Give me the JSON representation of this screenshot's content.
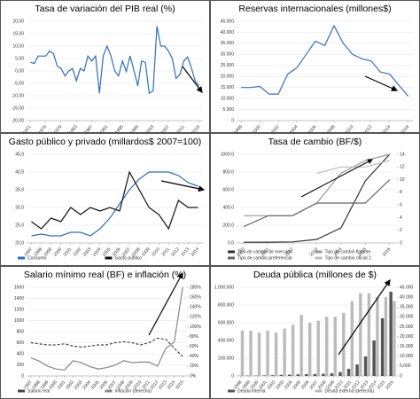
{
  "chart_data": [
    {
      "type": "line",
      "title": "Tasa de variación del PIB real (%)",
      "x": [
        1971,
        1972,
        1973,
        1974,
        1975,
        1976,
        1977,
        1978,
        1979,
        1980,
        1981,
        1982,
        1983,
        1984,
        1985,
        1986,
        1987,
        1988,
        1989,
        1990,
        1991,
        1992,
        1993,
        1994,
        1995,
        1996,
        1997,
        1998,
        1999,
        2000,
        2001,
        2002,
        2003,
        2004,
        2005,
        2006,
        2007,
        2008,
        2009,
        2010,
        2011,
        2012,
        2013,
        2014,
        2015
      ],
      "series": [
        {
          "name": "PIB real",
          "color": "#2e6fbf",
          "values": [
            3.5,
            3,
            6,
            6,
            6,
            8,
            7,
            2,
            1,
            -2,
            0,
            1,
            -4,
            1,
            0,
            6,
            4,
            6,
            -9,
            6,
            10,
            6,
            0,
            -2,
            4,
            -0.2,
            6,
            0.3,
            -6,
            4,
            3.4,
            -9,
            -8,
            18,
            10,
            10,
            8,
            5,
            -3,
            -1.5,
            4,
            5.6,
            1.3,
            -4,
            -6
          ]
        }
      ],
      "xlim": [
        1970,
        2016
      ],
      "xticks": [
        1971,
        1975,
        1979,
        1983,
        1987,
        1991,
        1995,
        1999,
        2003,
        2007,
        2011,
        2015
      ],
      "ylim": [
        -20,
        20
      ],
      "yticks": [
        {
          "value": -20,
          "label": "-20,00"
        },
        {
          "value": -15,
          "label": "-15,00"
        },
        {
          "value": -10,
          "label": "-10,00"
        },
        {
          "value": -5,
          "label": "-5,00"
        },
        {
          "value": 0,
          "label": "0,00"
        },
        {
          "value": 5,
          "label": "5,00"
        },
        {
          "value": 10,
          "label": "10,00"
        },
        {
          "value": 15,
          "label": "15,00"
        },
        {
          "value": 20,
          "label": "20,00"
        }
      ],
      "grid": true
    },
    {
      "type": "line",
      "title": "Reservas internacionales (millones$)",
      "x": [
        1998,
        1999,
        2000,
        2001,
        2002,
        2003,
        2004,
        2005,
        2006,
        2007,
        2008,
        2009,
        2010,
        2011,
        2012,
        2013,
        2014,
        2015,
        2016
      ],
      "series": [
        {
          "name": "Reservas",
          "color": "#3a6fc2",
          "values": [
            15000,
            15000,
            15500,
            12000,
            12000,
            21000,
            24000,
            30000,
            36000,
            34000,
            43000,
            35000,
            30000,
            28000,
            27000,
            22000,
            21000,
            16000,
            11000
          ]
        }
      ],
      "xlim": [
        1997.5,
        2016.5
      ],
      "xticks": [
        1998,
        2000,
        2002,
        2004,
        2006,
        2008,
        2010,
        2012,
        2014,
        2016
      ],
      "ylim": [
        0,
        45000
      ],
      "yticks": [
        0,
        {
          "value": 5000,
          "label": "5.000"
        },
        {
          "value": 10000,
          "label": "10.000"
        },
        {
          "value": 15000,
          "label": "15.000"
        },
        {
          "value": 20000,
          "label": "20.000"
        },
        {
          "value": 25000,
          "label": "25.000"
        },
        {
          "value": 30000,
          "label": "30.000"
        },
        {
          "value": 35000,
          "label": "35.000"
        },
        {
          "value": 40000,
          "label": "40.000"
        },
        {
          "value": 45000,
          "label": "45.000"
        }
      ],
      "grid": true
    },
    {
      "type": "line",
      "title": "Gasto público y privado (millardos$ 2007=100)",
      "x": [
        1997,
        1998,
        1999,
        2000,
        2001,
        2002,
        2003,
        2004,
        2005,
        2006,
        2007,
        2008,
        2009,
        2010,
        2011,
        2012,
        2013,
        2014
      ],
      "series": [
        {
          "name": "Consumo",
          "color": "#2e6fbf",
          "values": [
            22,
            22.5,
            22,
            22,
            23,
            23,
            22,
            24,
            27,
            31,
            35,
            38,
            40,
            40,
            40,
            39,
            37,
            36
          ]
        },
        {
          "name": "Gasto público",
          "color": "#111111",
          "values": [
            26,
            24,
            27,
            26,
            30,
            28,
            30,
            29,
            30,
            29,
            40,
            35,
            30,
            28,
            24,
            32,
            30,
            30
          ]
        }
      ],
      "xlim": [
        1996.5,
        2014.5
      ],
      "xticks": [
        1997,
        1998,
        1999,
        2000,
        2001,
        2002,
        2003,
        2004,
        2005,
        2006,
        2007,
        2008,
        2009,
        2010,
        2011,
        2012,
        2013,
        2014
      ],
      "ylim": [
        20,
        45
      ],
      "yticks": [
        {
          "value": 20,
          "label": "20,0"
        },
        {
          "value": 25,
          "label": "25,0"
        },
        {
          "value": 30,
          "label": "30,0"
        },
        {
          "value": 35,
          "label": "35,0"
        },
        {
          "value": 40,
          "label": "40,0"
        },
        {
          "value": 45,
          "label": "45,0"
        }
      ],
      "grid": true,
      "legend": true
    },
    {
      "type": "line",
      "title": "Tasa de cambio (BF/$)",
      "x": [
        2010,
        2011,
        2012,
        2013,
        2014,
        2015,
        2016
      ],
      "series": [
        {
          "name": "Tipo de cambio de mercado",
          "color": "#333333",
          "values": [
            8,
            9,
            12,
            40,
            170,
            700,
            1000
          ]
        },
        {
          "name": "Tipo de cambio flotante",
          "color": "#999999",
          "axis": "y2",
          "values": [
            4.3,
            4.3,
            4.3,
            6.3,
            11,
            13,
            14
          ]
        },
        {
          "name": "Tipo de cambio preferencial",
          "color": "#666666",
          "axis": "y2",
          "values": [
            2.6,
            4.3,
            4.3,
            6.3,
            6.3,
            6.3,
            10
          ]
        },
        {
          "name": "Tipo de cambio oficial 2",
          "color": "#bbbbbb",
          "axis": "y2",
          "values": [
            null,
            null,
            null,
            11,
            12,
            12,
            13
          ]
        }
      ],
      "xlim": [
        2009.7,
        2016.3
      ],
      "xticks": [
        2010,
        2011,
        2012,
        2013,
        2014,
        2015,
        2016
      ],
      "ylim": [
        0,
        1000
      ],
      "yticks": [
        {
          "value": 0,
          "label": "0.0"
        },
        {
          "value": 200,
          "label": "200.0"
        },
        {
          "value": 400,
          "label": "400.0"
        },
        {
          "value": 600,
          "label": "600.0"
        },
        {
          "value": 800,
          "label": "800.0"
        },
        {
          "value": 1000,
          "label": "1000.0"
        }
      ],
      "y2lim": [
        0,
        14
      ],
      "y2ticks": [
        0,
        2,
        4,
        6,
        8,
        10,
        12,
        14
      ],
      "grid": true,
      "legend": true
    },
    {
      "type": "line",
      "title": "Salario mínimo real (BF) e inflación (%)",
      "x": [
        1997,
        1998,
        1999,
        2000,
        2001,
        2002,
        2003,
        2004,
        2005,
        2006,
        2007,
        2008,
        2009,
        2010,
        2011,
        2012,
        2013,
        2014,
        2015
      ],
      "series": [
        {
          "name": "Salario real",
          "color": "#444444",
          "dash": true,
          "values": [
            600,
            580,
            560,
            560,
            580,
            540,
            520,
            540,
            560,
            560,
            600,
            620,
            600,
            560,
            600,
            680,
            660,
            500,
            350
          ]
        },
        {
          "name": "Inflación (derecha)",
          "color": "#888888",
          "axis": "y2",
          "values": [
            37,
            30,
            20,
            14,
            12,
            31,
            27,
            19,
            14,
            17,
            22,
            31,
            27,
            28,
            28,
            20,
            56,
            69,
            180
          ]
        }
      ],
      "xlim": [
        1996.5,
        2015.5
      ],
      "xticks": [
        1997,
        1998,
        1999,
        2000,
        2001,
        2002,
        2003,
        2004,
        2005,
        2006,
        2007,
        2008,
        2009,
        2010,
        2011,
        2012,
        2013,
        2014,
        2015
      ],
      "ylim": [
        0,
        1600
      ],
      "yticks": [
        0,
        200,
        400,
        600,
        800,
        1000,
        1200,
        1400,
        1600
      ],
      "y2lim": [
        0,
        180
      ],
      "y2ticks": [
        {
          "value": 0,
          "label": "0%"
        },
        {
          "value": 20,
          "label": "20%"
        },
        {
          "value": 40,
          "label": "40%"
        },
        {
          "value": 60,
          "label": "60%"
        },
        {
          "value": 80,
          "label": "80%"
        },
        {
          "value": 100,
          "label": "100%"
        },
        {
          "value": 120,
          "label": "120%"
        },
        {
          "value": 140,
          "label": "140%"
        },
        {
          "value": 160,
          "label": "160%"
        },
        {
          "value": 180,
          "label": "180%"
        }
      ],
      "grid": true,
      "legend": true
    },
    {
      "type": "bar",
      "title": "Deuda pública (millones de $)",
      "x": [
        1998,
        1999,
        2000,
        2001,
        2002,
        2003,
        2004,
        2005,
        2006,
        2007,
        2008,
        2009,
        2010,
        2011,
        2012,
        2013,
        2014,
        2015,
        2016
      ],
      "series": [
        {
          "name": "Deuda interna",
          "color": "#555555",
          "values": [
            2000,
            3000,
            4000,
            6000,
            8000,
            12000,
            15000,
            18000,
            20000,
            22000,
            25000,
            30000,
            45000,
            80000,
            130000,
            220000,
            400000,
            650000,
            950000
          ]
        },
        {
          "name": "Deuda externa (derecha)",
          "color": "#bbbbbb",
          "axis": "y2",
          "values": [
            23000,
            23000,
            22000,
            23000,
            22000,
            24000,
            26000,
            31000,
            27000,
            28000,
            30000,
            30000,
            32000,
            38000,
            42000,
            42000,
            40000,
            40000,
            38000
          ]
        }
      ],
      "xlim": [
        1997.5,
        2016.5
      ],
      "xticks": [
        1998,
        1999,
        2000,
        2001,
        2002,
        2003,
        2004,
        2005,
        2006,
        2007,
        2008,
        2009,
        2010,
        2011,
        2012,
        2013,
        2014,
        2015,
        2016
      ],
      "ylim": [
        0,
        1000000
      ],
      "yticks": [
        0,
        {
          "value": 200000,
          "label": "200.000"
        },
        {
          "value": 400000,
          "label": "400.000"
        },
        {
          "value": 600000,
          "label": "600.000"
        },
        {
          "value": 800000,
          "label": "800.000"
        },
        {
          "value": 1000000,
          "label": "1.000.000"
        }
      ],
      "y2lim": [
        0,
        45000
      ],
      "y2ticks": [
        0,
        {
          "value": 5000,
          "label": "5.000"
        },
        {
          "value": 10000,
          "label": "10.000"
        },
        {
          "value": 15000,
          "label": "15.000"
        },
        {
          "value": 20000,
          "label": "20.000"
        },
        {
          "value": 25000,
          "label": "25.000"
        },
        {
          "value": 30000,
          "label": "30.000"
        },
        {
          "value": 35000,
          "label": "35.000"
        },
        {
          "value": 40000,
          "label": "40.000"
        },
        {
          "value": 45000,
          "label": "45.000"
        }
      ],
      "grid": true,
      "legend": true
    }
  ]
}
